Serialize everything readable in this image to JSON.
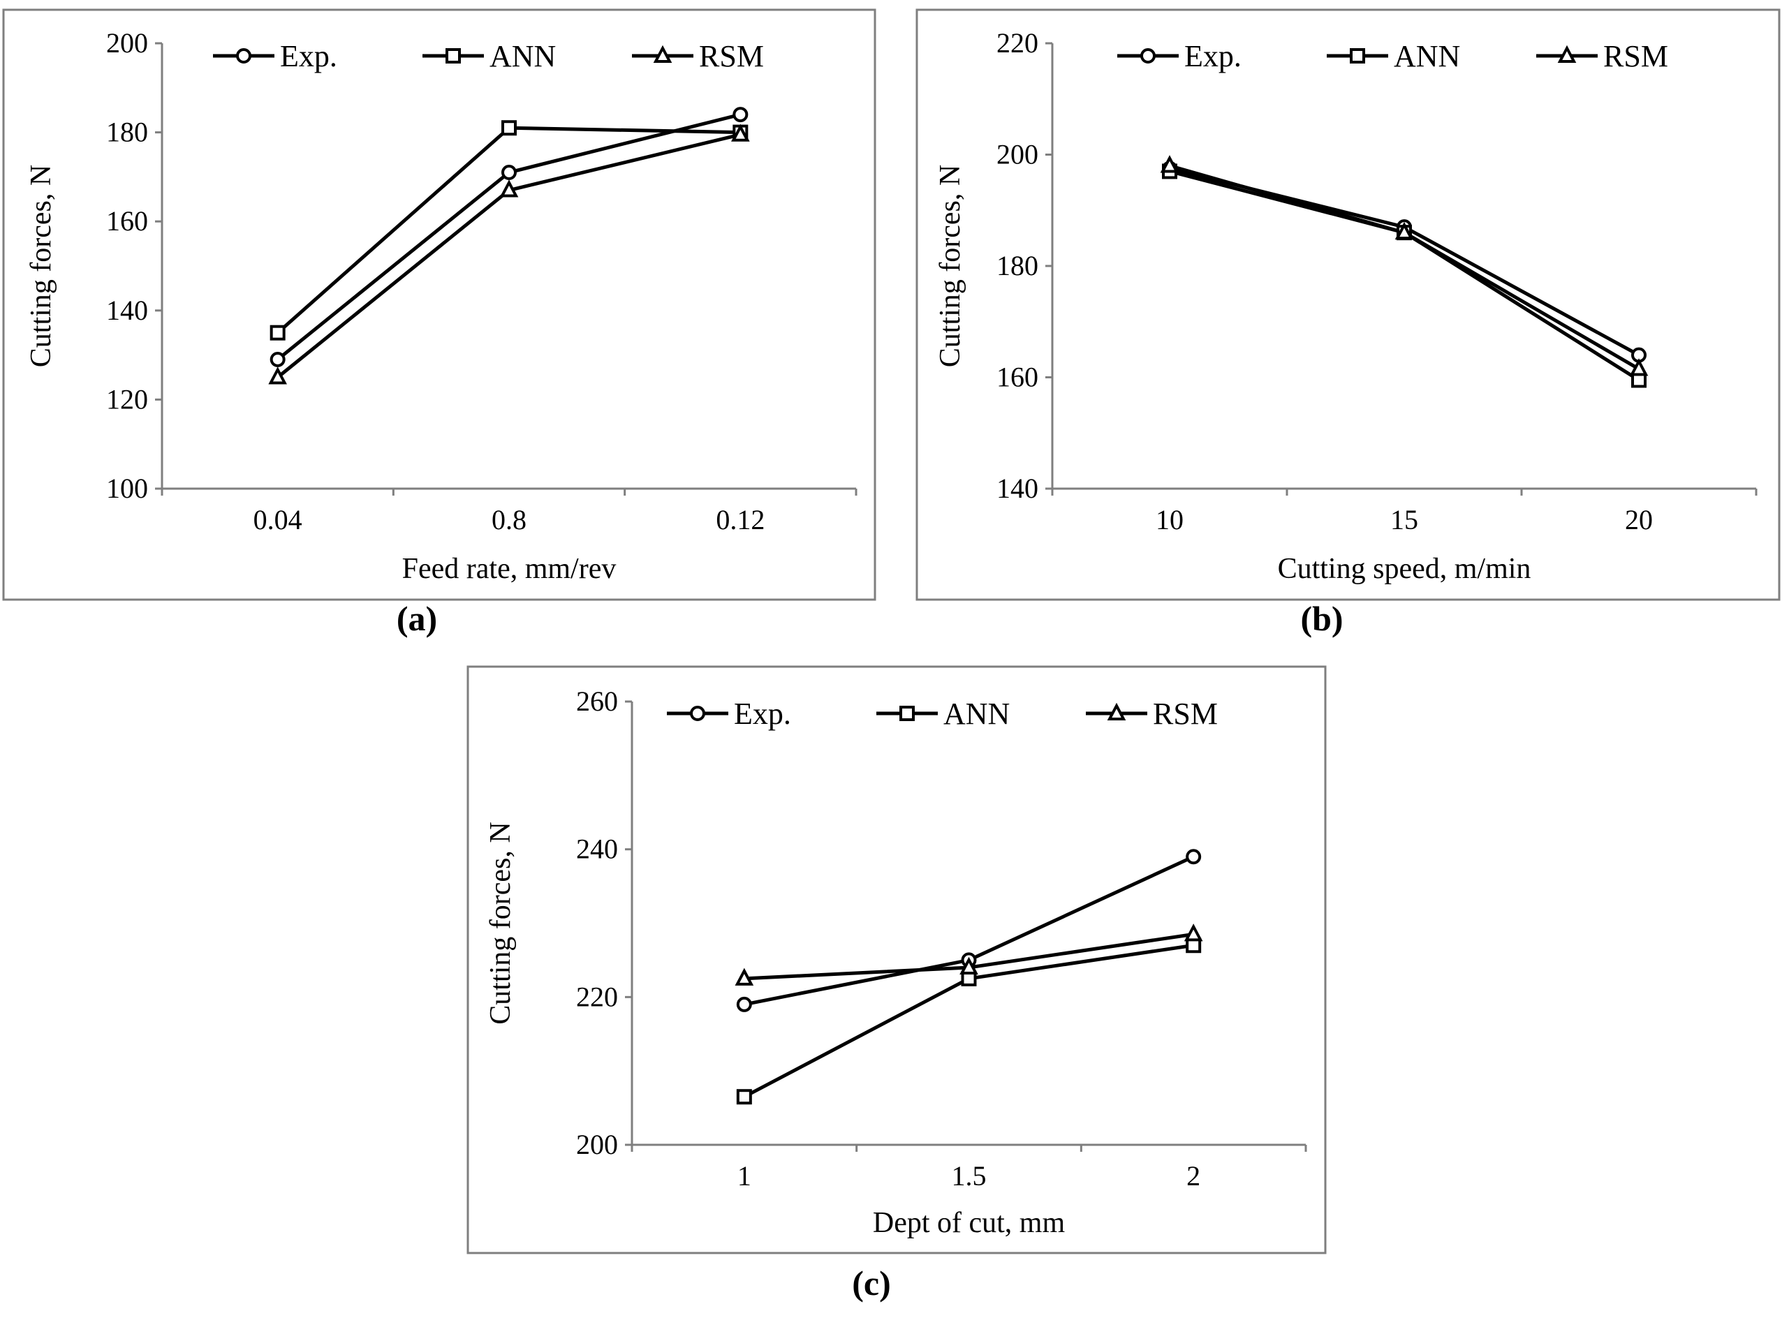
{
  "chart_data": [
    {
      "type": "line",
      "caption": "(a)",
      "xlabel": "Feed rate, mm/rev",
      "ylabel": "Cutting forces, N",
      "categories": [
        "0.04",
        "0.8",
        "0.12"
      ],
      "ylim": [
        100,
        200
      ],
      "yticks": [
        100,
        120,
        140,
        160,
        180,
        200
      ],
      "series": [
        {
          "name": "Exp.",
          "marker": "circle",
          "values": [
            129,
            171,
            184
          ]
        },
        {
          "name": "ANN",
          "marker": "square",
          "values": [
            135,
            181,
            180
          ]
        },
        {
          "name": "RSM",
          "marker": "triangle",
          "values": [
            125,
            167,
            179.5
          ]
        }
      ]
    },
    {
      "type": "line",
      "caption": "(b)",
      "xlabel": "Cutting speed, m/min",
      "ylabel": "Cutting forces, N",
      "categories": [
        "10",
        "15",
        "20"
      ],
      "ylim": [
        140,
        220
      ],
      "yticks": [
        140,
        160,
        180,
        200,
        220
      ],
      "series": [
        {
          "name": "Exp.",
          "marker": "circle",
          "values": [
            197.5,
            187,
            164
          ]
        },
        {
          "name": "ANN",
          "marker": "square",
          "values": [
            197,
            186,
            159.5
          ]
        },
        {
          "name": "RSM",
          "marker": "triangle",
          "values": [
            198,
            186,
            161.5
          ]
        }
      ]
    },
    {
      "type": "line",
      "caption": "(c)",
      "xlabel": "Dept of cut, mm",
      "ylabel": "Cutting forces, N",
      "categories": [
        "1",
        "1.5",
        "2"
      ],
      "ylim": [
        200,
        260
      ],
      "yticks": [
        200,
        220,
        240,
        260
      ],
      "series": [
        {
          "name": "Exp.",
          "marker": "circle",
          "values": [
            219,
            225,
            239
          ]
        },
        {
          "name": "ANN",
          "marker": "square",
          "values": [
            206.5,
            222.5,
            227
          ]
        },
        {
          "name": "RSM",
          "marker": "triangle",
          "values": [
            222.5,
            224,
            228.5
          ]
        }
      ]
    }
  ]
}
